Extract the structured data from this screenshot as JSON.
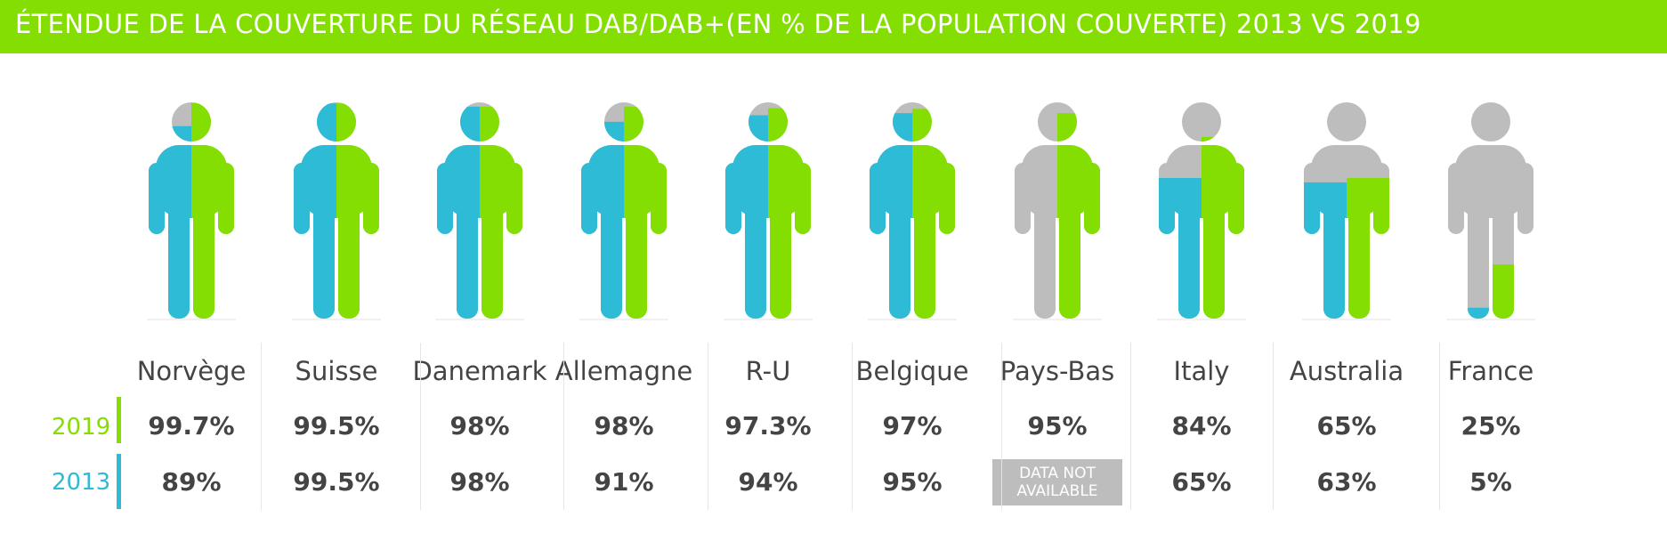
{
  "header": {
    "title": "ÉTENDUE DE LA COUVERTURE DU RÉSEAU DAB/DAB+(EN % DE LA POPULATION COUVERTE) 2013 VS 2019"
  },
  "legend": {
    "year_2019": "2019",
    "year_2013": "2013"
  },
  "colors": {
    "green_2019": "#84DE02",
    "blue_2013": "#2DBBD6",
    "gray_uncovered": "#BDBDBD"
  },
  "chart_data": {
    "type": "bar",
    "title": "ÉTENDUE DE LA COUVERTURE DU RÉSEAU DAB/DAB+(EN % DE LA POPULATION COUVERTE) 2013 VS 2019",
    "categories": [
      "Norvège",
      "Suisse",
      "Danemark",
      "Allemagne",
      "R-U",
      "Belgique",
      "Pays-Bas",
      "Italy",
      "Australia",
      "France"
    ],
    "series": [
      {
        "name": "2019",
        "values": [
          99.7,
          99.5,
          98,
          98,
          97.3,
          97,
          95,
          84,
          65,
          25
        ]
      },
      {
        "name": "2013",
        "values": [
          89,
          99.5,
          98,
          91,
          94,
          95,
          null,
          65,
          63,
          5
        ]
      }
    ],
    "labels_2019": [
      "99.7%",
      "99.5%",
      "98%",
      "98%",
      "97.3%",
      "97%",
      "95%",
      "84%",
      "65%",
      "25%"
    ],
    "labels_2013": [
      "89%",
      "99.5%",
      "98%",
      "91%",
      "94%",
      "95%",
      "DATA NOT AVAILABLE",
      "65%",
      "63%",
      "5%"
    ],
    "ylim": [
      0,
      100
    ]
  }
}
